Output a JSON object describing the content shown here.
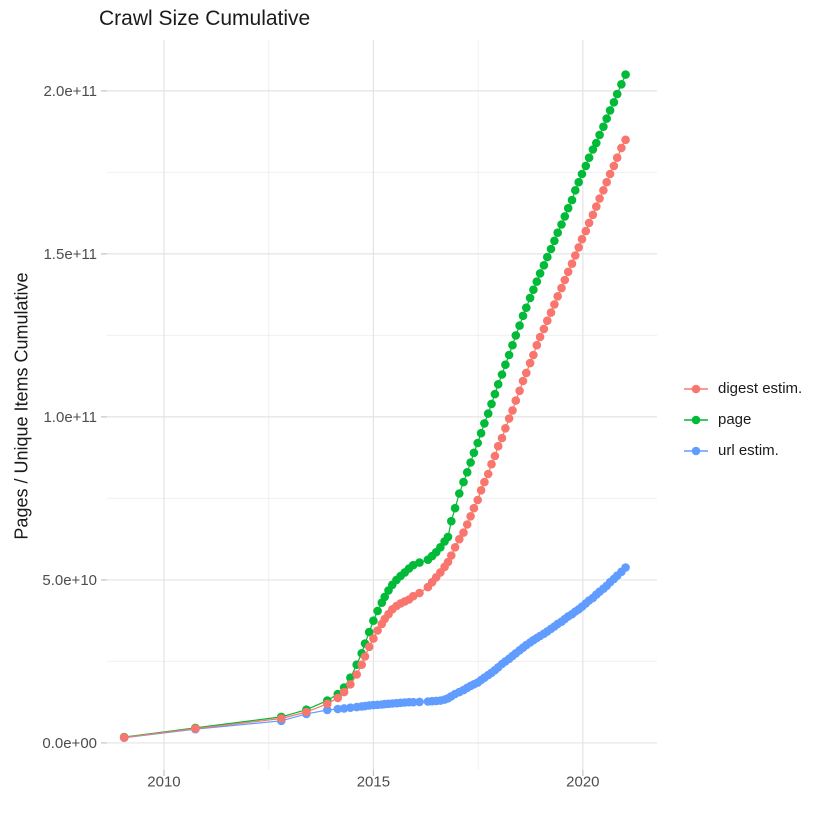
{
  "title": "Crawl Size Cumulative",
  "axes": {
    "x": {
      "range": [
        2008.64,
        2021.77
      ],
      "major": [
        {
          "v": 2010,
          "label": "2010"
        },
        {
          "v": 2015,
          "label": "2015"
        },
        {
          "v": 2020,
          "label": "2020"
        }
      ],
      "minor": [
        2012.5,
        2017.5
      ]
    },
    "y": {
      "range": [
        -8.3,
        215.6
      ],
      "unit": "1e9",
      "major": [
        {
          "v": 0,
          "label": "0.0e+00"
        },
        {
          "v": 50,
          "label": "5.0e+10"
        },
        {
          "v": 100,
          "label": "1.0e+11"
        },
        {
          "v": 150,
          "label": "1.5e+11"
        },
        {
          "v": 200,
          "label": "2.0e+11"
        }
      ],
      "minor": [
        25,
        75,
        125,
        175
      ]
    }
  },
  "legend": {
    "items": [
      {
        "label": "digest estim.",
        "color": "#F8766D"
      },
      {
        "label": "page",
        "color": "#00BA38"
      },
      {
        "label": "url estim.",
        "color": "#619CFF"
      }
    ]
  },
  "style": {
    "grid_major_color": "#E4E4E4",
    "grid_minor_color": "#F0F0F0",
    "tick_mark_color": "#C4C4C4",
    "tick_text_color": "#4d4d4d",
    "point_radius": 4.3,
    "line_width": 1.2
  },
  "chart_data": {
    "type": "line",
    "title": "Crawl Size Cumulative",
    "xlabel": "",
    "ylabel": "Pages / Unique Items Cumulative",
    "legend_position": "right",
    "grid": true,
    "x_ticks": [
      "2010",
      "2015",
      "2020"
    ],
    "y_ticks": [
      "0.0e+00",
      "5.0e+10",
      "1.0e+11",
      "1.5e+11",
      "2.0e+11"
    ],
    "values_unit": "1e9",
    "ylim": [
      0,
      215.6
    ],
    "x": [
      2009.05,
      2010.75,
      2012.8,
      2013.4,
      2013.9,
      2014.15,
      2014.3,
      2014.45,
      2014.6,
      2014.72,
      2014.8,
      2014.9,
      2015.0,
      2015.1,
      2015.2,
      2015.27,
      2015.36,
      2015.45,
      2015.55,
      2015.65,
      2015.75,
      2015.85,
      2015.95,
      2016.1,
      2016.3,
      2016.4,
      2016.5,
      2016.6,
      2016.7,
      2016.78,
      2016.86,
      2016.95,
      2017.05,
      2017.15,
      2017.24,
      2017.32,
      2017.4,
      2017.49,
      2017.57,
      2017.65,
      2017.74,
      2017.82,
      2017.9,
      2017.98,
      2018.07,
      2018.15,
      2018.24,
      2018.32,
      2018.4,
      2018.49,
      2018.57,
      2018.65,
      2018.74,
      2018.82,
      2018.9,
      2018.98,
      2019.07,
      2019.15,
      2019.24,
      2019.32,
      2019.4,
      2019.49,
      2019.57,
      2019.65,
      2019.74,
      2019.82,
      2019.9,
      2019.98,
      2020.07,
      2020.15,
      2020.24,
      2020.32,
      2020.4,
      2020.49,
      2020.57,
      2020.65,
      2020.74,
      2020.82,
      2020.92,
      2021.02
    ],
    "series": [
      {
        "name": "digest estim.",
        "color": "#F8766D",
        "values": [
          1.7,
          4.4,
          7.5,
          9.5,
          12.0,
          13.8,
          15.6,
          18.0,
          21.0,
          24.0,
          26.5,
          29.5,
          32.0,
          34.5,
          36.5,
          38.0,
          39.5,
          41.0,
          42.0,
          42.8,
          43.4,
          44.0,
          45.0,
          46.0,
          47.8,
          49.3,
          50.8,
          52.3,
          54.0,
          55.5,
          57.5,
          60.0,
          62.5,
          64.5,
          67.0,
          69.5,
          72.0,
          74.5,
          77.5,
          80.0,
          82.5,
          85.5,
          88.0,
          91.0,
          93.5,
          96.5,
          99.5,
          102.0,
          105.0,
          108.0,
          111.0,
          113.5,
          116.5,
          119.0,
          122.0,
          124.5,
          127.0,
          129.5,
          132.0,
          134.5,
          137.0,
          139.5,
          142.0,
          144.5,
          147.0,
          149.5,
          152.0,
          154.5,
          157.0,
          159.5,
          162.0,
          164.5,
          167.0,
          169.5,
          172.0,
          174.5,
          177.0,
          179.5,
          182.5,
          185.0
        ]
      },
      {
        "name": "page",
        "color": "#00BA38",
        "values": [
          1.8,
          4.6,
          8.0,
          10.2,
          13.0,
          15.0,
          17.0,
          20.0,
          24.0,
          27.5,
          30.5,
          34.0,
          37.5,
          40.5,
          43.0,
          44.8,
          46.8,
          48.5,
          50.0,
          51.2,
          52.3,
          53.5,
          54.5,
          55.3,
          56.2,
          57.3,
          58.5,
          60.0,
          61.8,
          63.2,
          68.0,
          72.0,
          76.5,
          80.0,
          83.0,
          86.0,
          89.0,
          92.0,
          95.0,
          98.0,
          101.0,
          104.0,
          107.0,
          110.0,
          113.0,
          116.0,
          119.0,
          122.0,
          125.0,
          128.0,
          131.0,
          133.5,
          136.5,
          139.0,
          141.5,
          144.0,
          146.5,
          149.0,
          151.5,
          154.0,
          156.5,
          159.0,
          161.5,
          164.0,
          166.5,
          169.5,
          172.0,
          174.5,
          177.0,
          179.5,
          182.0,
          184.0,
          186.5,
          189.0,
          191.5,
          194.0,
          196.5,
          199.0,
          202.0,
          205.0
        ]
      },
      {
        "name": "url estim.",
        "color": "#619CFF",
        "values": [
          1.6,
          4.2,
          6.8,
          8.9,
          10.1,
          10.4,
          10.6,
          10.8,
          11.0,
          11.2,
          11.3,
          11.5,
          11.6,
          11.7,
          11.8,
          11.9,
          12.0,
          12.1,
          12.2,
          12.3,
          12.4,
          12.5,
          12.5,
          12.6,
          12.7,
          12.8,
          12.9,
          13.0,
          13.3,
          13.7,
          14.3,
          15.0,
          15.6,
          16.2,
          16.9,
          17.5,
          18.0,
          18.5,
          19.3,
          20.0,
          20.8,
          21.5,
          22.3,
          23.2,
          24.2,
          25.0,
          25.8,
          26.7,
          27.5,
          28.4,
          29.2,
          30.0,
          30.8,
          31.5,
          32.2,
          32.8,
          33.5,
          34.2,
          35.0,
          35.7,
          36.5,
          37.2,
          38.0,
          38.8,
          39.5,
          40.3,
          41.0,
          41.8,
          42.8,
          43.7,
          44.5,
          45.5,
          46.4,
          47.3,
          48.2,
          49.3,
          50.3,
          51.3,
          52.5,
          53.8
        ]
      }
    ]
  }
}
